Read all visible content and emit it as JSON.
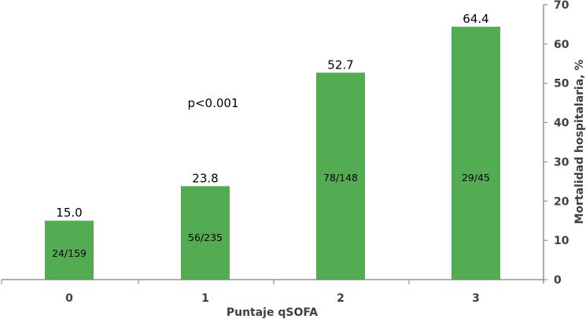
{
  "chart_data": {
    "type": "bar",
    "title": "",
    "categories": [
      "0",
      "1",
      "2",
      "3"
    ],
    "values": [
      15.0,
      23.8,
      52.7,
      64.4
    ],
    "value_labels": [
      "15.0",
      "23.8",
      "52.7",
      "64.4"
    ],
    "count_labels": [
      "24/159",
      "56/235",
      "78/148",
      "29/45"
    ],
    "xlabel": "Puntaje qSOFA",
    "ylabel": "Mortalidad hospitalaria, %",
    "ylim": [
      0,
      70
    ],
    "yticks": [
      "0",
      "10",
      "20",
      "30",
      "40",
      "50",
      "60",
      "70"
    ],
    "y_axis_position": "right",
    "grid": false,
    "legend": null,
    "annotations": [
      {
        "text": "p<0.001"
      }
    ],
    "bar_color": "#53ac52",
    "axis_color": "#7f7f7f",
    "tick_label_color": "#404040"
  }
}
